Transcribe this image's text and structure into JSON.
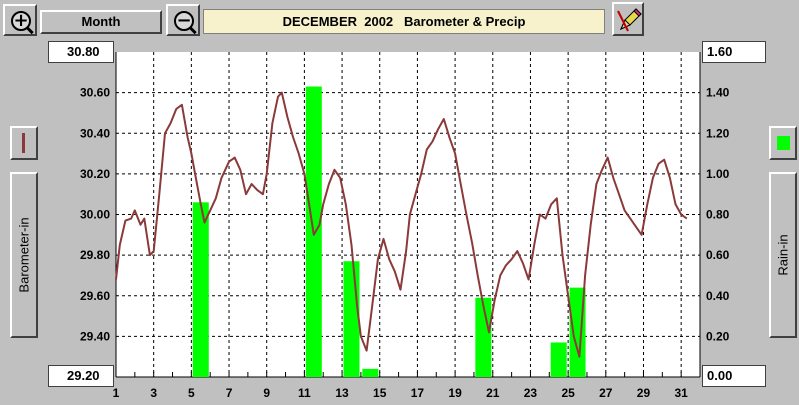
{
  "toolbar": {
    "zoom_in_icon": "zoom-in-icon",
    "zoom_out_icon": "zoom-out-icon",
    "period_label": "Month",
    "title_month": "DECEMBER  2002",
    "title_text": "Barometer & Precip",
    "pencil_icon": "pencil-icon"
  },
  "left_panel": {
    "axis_button_label": "Barometer-in",
    "line_swatch_color": "#8b3a3a",
    "top_value": "30.80",
    "bottom_value": "29.20"
  },
  "right_panel": {
    "axis_button_label": "Rain-in",
    "bar_swatch_color": "#00ff00",
    "top_value": "1.60",
    "bottom_value": "0.00"
  },
  "chart_data": {
    "type": "bar+line",
    "title": "DECEMBER  2002   Barometer & Precip",
    "xlabel": "",
    "x_ticks": [
      "1",
      "3",
      "5",
      "7",
      "9",
      "11",
      "13",
      "15",
      "17",
      "19",
      "21",
      "23",
      "25",
      "27",
      "29",
      "31"
    ],
    "xlim": [
      1,
      32
    ],
    "left_axis": {
      "label": "Barometer-in",
      "ylim": [
        29.2,
        30.8
      ],
      "ticks": [
        "29.20",
        "29.40",
        "29.60",
        "29.80",
        "30.00",
        "30.20",
        "30.40",
        "30.60",
        "30.80"
      ]
    },
    "right_axis": {
      "label": "Rain-in",
      "ylim": [
        0,
        1.6
      ],
      "ticks": [
        "0.00",
        "0.20",
        "0.40",
        "0.60",
        "0.80",
        "1.00",
        "1.20",
        "1.40",
        "1.60"
      ]
    },
    "grid": true,
    "series": [
      {
        "name": "Rain-in",
        "type": "bar",
        "color": "#00ff00",
        "days": [
          5,
          11,
          13,
          14,
          20,
          24,
          25
        ],
        "values": [
          0.86,
          1.43,
          0.57,
          0.04,
          0.39,
          0.17,
          0.44
        ]
      },
      {
        "name": "Barometer-in",
        "type": "line",
        "color": "#8b3a3a",
        "x": [
          1.0,
          1.2,
          1.5,
          1.8,
          2.0,
          2.3,
          2.5,
          2.8,
          3.0,
          3.3,
          3.6,
          3.9,
          4.2,
          4.5,
          4.8,
          5.0,
          5.2,
          5.5,
          5.7,
          6.0,
          6.3,
          6.6,
          7.0,
          7.3,
          7.6,
          7.9,
          8.2,
          8.5,
          8.8,
          9.0,
          9.3,
          9.6,
          9.8,
          10.1,
          10.4,
          10.7,
          11.0,
          11.2,
          11.5,
          11.8,
          12.0,
          12.3,
          12.6,
          12.9,
          13.2,
          13.5,
          13.8,
          14.0,
          14.3,
          14.6,
          14.9,
          15.2,
          15.5,
          15.8,
          16.1,
          16.4,
          16.6,
          16.9,
          17.2,
          17.5,
          17.8,
          18.1,
          18.4,
          18.7,
          19.0,
          19.3,
          19.6,
          19.9,
          20.2,
          20.5,
          20.8,
          21.1,
          21.4,
          21.7,
          22.0,
          22.3,
          22.6,
          22.9,
          23.2,
          23.5,
          23.8,
          24.1,
          24.4,
          24.7,
          25.0,
          25.3,
          25.6,
          25.9,
          26.2,
          26.5,
          26.8,
          27.1,
          27.4,
          27.7,
          28.0,
          28.3,
          28.6,
          28.9,
          29.2,
          29.5,
          29.8,
          30.1,
          30.4,
          30.7,
          31.0,
          31.3
        ],
        "y": [
          29.68,
          29.85,
          29.97,
          29.98,
          30.02,
          29.95,
          29.98,
          29.8,
          29.82,
          30.1,
          30.4,
          30.45,
          30.52,
          30.54,
          30.38,
          30.3,
          30.2,
          30.05,
          29.96,
          30.02,
          30.08,
          30.18,
          30.26,
          30.28,
          30.22,
          30.1,
          30.15,
          30.12,
          30.1,
          30.2,
          30.45,
          30.58,
          30.6,
          30.48,
          30.38,
          30.3,
          30.2,
          30.08,
          29.9,
          29.95,
          30.05,
          30.15,
          30.22,
          30.18,
          30.05,
          29.85,
          29.55,
          29.4,
          29.33,
          29.55,
          29.78,
          29.88,
          29.78,
          29.72,
          29.63,
          29.82,
          30.0,
          30.1,
          30.2,
          30.32,
          30.36,
          30.42,
          30.47,
          30.38,
          30.3,
          30.15,
          30.0,
          29.86,
          29.7,
          29.55,
          29.42,
          29.58,
          29.7,
          29.75,
          29.78,
          29.82,
          29.76,
          29.68,
          29.85,
          30.0,
          29.98,
          30.05,
          30.08,
          29.8,
          29.6,
          29.4,
          29.3,
          29.7,
          29.95,
          30.15,
          30.22,
          30.28,
          30.18,
          30.1,
          30.02,
          29.98,
          29.94,
          29.9,
          30.05,
          30.18,
          30.25,
          30.27,
          30.18,
          30.05,
          30.0,
          29.98
        ]
      }
    ]
  }
}
